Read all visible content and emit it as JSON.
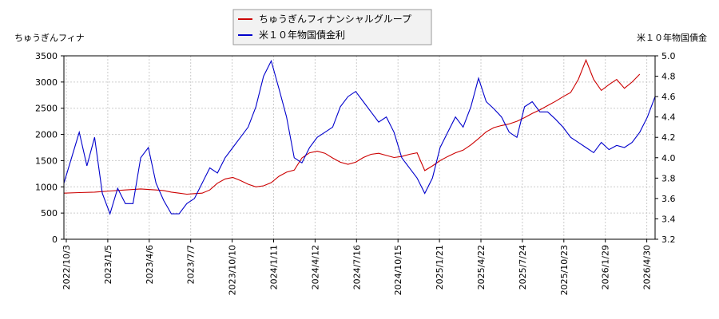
{
  "chart_data": {
    "type": "line",
    "left_axis_label": "ちゅうぎんフィナ",
    "right_axis_label": "米１０年物国債金",
    "legend_position": "top-center",
    "grid": true,
    "x_tick_labels": [
      "2022/10/3",
      "2023/1/5",
      "2023/4/6",
      "2023/7/7",
      "2023/10/10",
      "2024/1/11",
      "2024/4/12",
      "2024/7/16",
      "2024/10/15",
      "2025/1/21",
      "2025/4/22",
      "2025/7/24",
      "2025/10/23",
      "2026/1/29",
      "2026/4/30"
    ],
    "y_left": {
      "min": 0,
      "max": 3500,
      "ticks": [
        0,
        500,
        1000,
        1500,
        2000,
        2500,
        3000,
        3500
      ]
    },
    "y_right": {
      "min": 3.2,
      "max": 5.0,
      "ticks": [
        "3.2",
        "3.4",
        "3.6",
        "3.8",
        "4.0",
        "4.2",
        "4.4",
        "4.6",
        "4.8",
        "5.0"
      ]
    },
    "series": [
      {
        "name": "ちゅうぎんフィナンシャルグループ",
        "axis": "left",
        "color": "#cc0000",
        "points": [
          [
            0,
            880
          ],
          [
            2,
            890
          ],
          [
            4,
            900
          ],
          [
            6,
            920
          ],
          [
            8,
            940
          ],
          [
            9,
            950
          ],
          [
            10,
            960
          ],
          [
            11,
            950
          ],
          [
            12,
            940
          ],
          [
            13,
            930
          ],
          [
            14,
            900
          ],
          [
            15,
            880
          ],
          [
            16,
            860
          ],
          [
            17,
            870
          ],
          [
            18,
            880
          ],
          [
            19,
            940
          ],
          [
            20,
            1070
          ],
          [
            21,
            1150
          ],
          [
            22,
            1180
          ],
          [
            23,
            1120
          ],
          [
            24,
            1050
          ],
          [
            25,
            1000
          ],
          [
            26,
            1020
          ],
          [
            27,
            1080
          ],
          [
            28,
            1200
          ],
          [
            29,
            1280
          ],
          [
            30,
            1320
          ],
          [
            31,
            1550
          ],
          [
            32,
            1650
          ],
          [
            33,
            1680
          ],
          [
            34,
            1640
          ],
          [
            35,
            1550
          ],
          [
            36,
            1470
          ],
          [
            37,
            1430
          ],
          [
            38,
            1470
          ],
          [
            39,
            1560
          ],
          [
            40,
            1620
          ],
          [
            41,
            1640
          ],
          [
            42,
            1600
          ],
          [
            43,
            1560
          ],
          [
            44,
            1580
          ],
          [
            45,
            1620
          ],
          [
            46,
            1650
          ],
          [
            47,
            1310
          ],
          [
            48,
            1400
          ],
          [
            49,
            1500
          ],
          [
            50,
            1580
          ],
          [
            51,
            1650
          ],
          [
            52,
            1700
          ],
          [
            53,
            1800
          ],
          [
            54,
            1920
          ],
          [
            55,
            2050
          ],
          [
            56,
            2130
          ],
          [
            57,
            2170
          ],
          [
            58,
            2200
          ],
          [
            59,
            2250
          ],
          [
            60,
            2320
          ],
          [
            61,
            2400
          ],
          [
            62,
            2470
          ],
          [
            63,
            2550
          ],
          [
            64,
            2630
          ],
          [
            65,
            2720
          ],
          [
            66,
            2800
          ],
          [
            67,
            3050
          ],
          [
            68,
            3420
          ],
          [
            69,
            3050
          ],
          [
            70,
            2840
          ],
          [
            71,
            2950
          ],
          [
            72,
            3050
          ],
          [
            73,
            2880
          ],
          [
            74,
            3000
          ],
          [
            75,
            3150
          ]
        ]
      },
      {
        "name": "米１０年物国債金利",
        "axis": "right",
        "color": "#0000cc",
        "points": [
          [
            0,
            3.75
          ],
          [
            1,
            4.0
          ],
          [
            2,
            4.25
          ],
          [
            3,
            3.92
          ],
          [
            4,
            4.2
          ],
          [
            5,
            3.65
          ],
          [
            6,
            3.45
          ],
          [
            7,
            3.7
          ],
          [
            8,
            3.55
          ],
          [
            9,
            3.55
          ],
          [
            10,
            4.0
          ],
          [
            11,
            4.1
          ],
          [
            12,
            3.75
          ],
          [
            13,
            3.58
          ],
          [
            14,
            3.45
          ],
          [
            15,
            3.45
          ],
          [
            16,
            3.55
          ],
          [
            17,
            3.6
          ],
          [
            18,
            3.75
          ],
          [
            19,
            3.9
          ],
          [
            20,
            3.85
          ],
          [
            21,
            4.0
          ],
          [
            22,
            4.1
          ],
          [
            23,
            4.2
          ],
          [
            24,
            4.3
          ],
          [
            25,
            4.5
          ],
          [
            26,
            4.8
          ],
          [
            27,
            4.95
          ],
          [
            28,
            4.68
          ],
          [
            29,
            4.4
          ],
          [
            30,
            4.0
          ],
          [
            31,
            3.95
          ],
          [
            32,
            4.1
          ],
          [
            33,
            4.2
          ],
          [
            34,
            4.25
          ],
          [
            35,
            4.3
          ],
          [
            36,
            4.5
          ],
          [
            37,
            4.6
          ],
          [
            38,
            4.65
          ],
          [
            39,
            4.55
          ],
          [
            40,
            4.45
          ],
          [
            41,
            4.35
          ],
          [
            42,
            4.4
          ],
          [
            43,
            4.25
          ],
          [
            44,
            4.0
          ],
          [
            45,
            3.9
          ],
          [
            46,
            3.8
          ],
          [
            47,
            3.65
          ],
          [
            48,
            3.8
          ],
          [
            49,
            4.1
          ],
          [
            50,
            4.25
          ],
          [
            51,
            4.4
          ],
          [
            52,
            4.3
          ],
          [
            53,
            4.5
          ],
          [
            54,
            4.78
          ],
          [
            55,
            4.55
          ],
          [
            56,
            4.48
          ],
          [
            57,
            4.4
          ],
          [
            58,
            4.25
          ],
          [
            59,
            4.2
          ],
          [
            60,
            4.5
          ],
          [
            61,
            4.55
          ],
          [
            62,
            4.45
          ],
          [
            63,
            4.45
          ],
          [
            64,
            4.38
          ],
          [
            65,
            4.3
          ],
          [
            66,
            4.2
          ],
          [
            67,
            4.15
          ],
          [
            68,
            4.1
          ],
          [
            69,
            4.05
          ],
          [
            70,
            4.15
          ],
          [
            71,
            4.08
          ],
          [
            72,
            4.12
          ],
          [
            73,
            4.1
          ],
          [
            74,
            4.15
          ],
          [
            75,
            4.25
          ],
          [
            76,
            4.4
          ],
          [
            77,
            4.6
          ]
        ]
      }
    ]
  }
}
